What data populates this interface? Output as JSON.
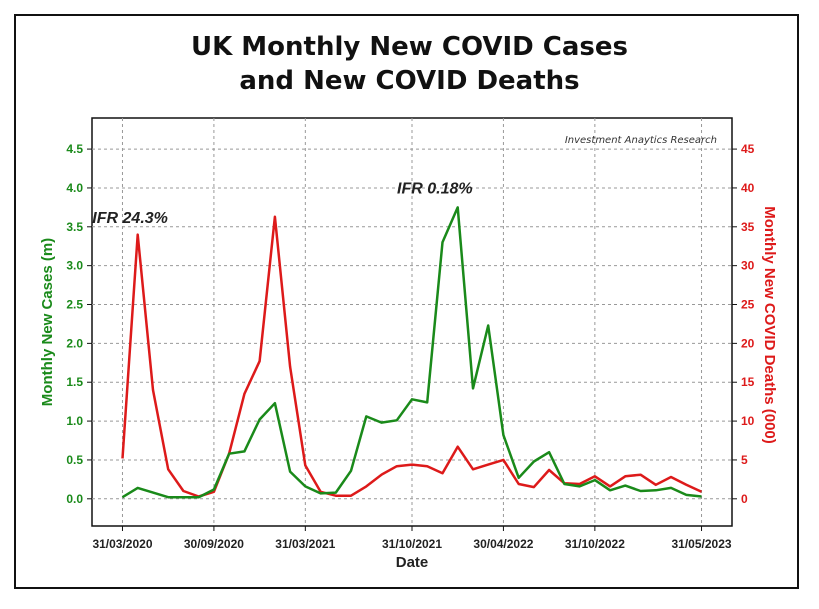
{
  "chart_data": {
    "type": "line",
    "title_line1": "UK Monthly New COVID Cases",
    "title_line2": "and New COVID Deaths",
    "watermark": "Investment Anaytics Research",
    "xlabel": "Date",
    "ylabel_left": "Monthly New Cases (m)",
    "ylabel_right": "Monthly New COVID Deaths (000)",
    "ylim_left": [
      -0.35,
      4.9
    ],
    "ylim_right": [
      -3.5,
      49
    ],
    "yticks_left": [
      "0.0",
      "0.5",
      "1.0",
      "1.5",
      "2.0",
      "2.5",
      "3.0",
      "3.5",
      "4.0",
      "4.5"
    ],
    "yticks_right": [
      "0",
      "5",
      "10",
      "15",
      "20",
      "25",
      "30",
      "35",
      "40",
      "45"
    ],
    "x_ticks": [
      {
        "label": "31/03/2020",
        "month": 0
      },
      {
        "label": "30/09/2020",
        "month": 6
      },
      {
        "label": "31/03/2021",
        "month": 12
      },
      {
        "label": "31/10/2021",
        "month": 19
      },
      {
        "label": "30/04/2022",
        "month": 25
      },
      {
        "label": "31/10/2022",
        "month": 31
      },
      {
        "label": "31/05/2023",
        "month": 38
      }
    ],
    "x_grid_months": [
      0,
      6,
      12,
      19,
      25,
      31,
      38
    ],
    "xlim_months": [
      -2,
      40
    ],
    "grid": true,
    "annotations": [
      {
        "text": "IFR 24.3%",
        "month": 0.5,
        "value_right": 35.5
      },
      {
        "text": "IFR 0.18%",
        "month": 20.5,
        "value_right": 39.3
      }
    ],
    "series": [
      {
        "name": "Monthly New Cases (m)",
        "axis": "left",
        "color": "#1a8a1a",
        "values": [
          0.02,
          0.14,
          0.08,
          0.02,
          0.02,
          0.02,
          0.12,
          0.58,
          0.61,
          1.02,
          1.23,
          0.35,
          0.16,
          0.07,
          0.08,
          0.36,
          1.06,
          0.98,
          1.01,
          1.28,
          1.24,
          3.3,
          3.75,
          1.42,
          2.23,
          0.82,
          0.27,
          0.48,
          0.6,
          0.19,
          0.16,
          0.24,
          0.11,
          0.17,
          0.1,
          0.11,
          0.14,
          0.05,
          0.03
        ]
      },
      {
        "name": "Monthly New COVID Deaths (000)",
        "axis": "right",
        "color": "#dd1a1a",
        "values": [
          5.2,
          34,
          14,
          3.8,
          1,
          0.3,
          0.9,
          5.8,
          13.5,
          17.7,
          36.3,
          17,
          4.3,
          0.9,
          0.4,
          0.4,
          1.6,
          3.1,
          4.2,
          4.4,
          4.2,
          3.3,
          6.7,
          3.8,
          4.4,
          5,
          1.9,
          1.5,
          3.7,
          2,
          1.9,
          2.9,
          1.6,
          2.9,
          3.1,
          1.8,
          2.8,
          1.8,
          0.9
        ]
      }
    ]
  }
}
